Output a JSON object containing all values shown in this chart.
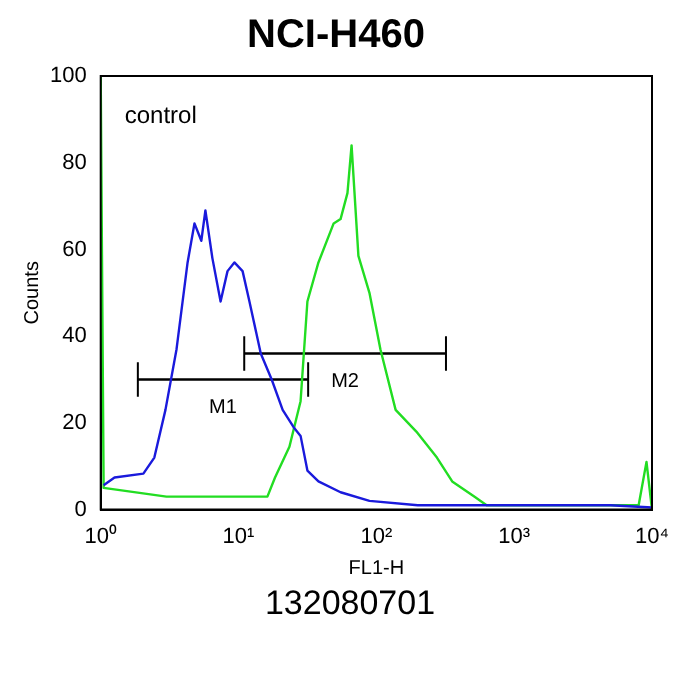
{
  "chart_data": {
    "type": "line",
    "title": "NCI-H460",
    "xlabel": "FL1-H",
    "ylabel": "Counts",
    "log": "x",
    "xlim": [
      1,
      10000
    ],
    "ylim": [
      0,
      100
    ],
    "xticks": [
      {
        "value": 1,
        "label": "10⁰"
      },
      {
        "value": 10,
        "label": "10¹"
      },
      {
        "value": 100,
        "label": "10²"
      },
      {
        "value": 1000,
        "label": "10³"
      },
      {
        "value": 10000,
        "label": "10⁴"
      }
    ],
    "yticks": [
      0,
      20,
      40,
      60,
      80,
      100
    ],
    "grid": false,
    "legend": false,
    "marker": "none",
    "line_style": "solid",
    "series": [
      {
        "color": "#1a1adc",
        "x": [
          1.05,
          1.26,
          2.04,
          2.45,
          2.95,
          3.55,
          4.27,
          4.79,
          5.37,
          5.75,
          6.46,
          7.41,
          8.32,
          9.33,
          10.7,
          12.0,
          14.5,
          17.4,
          20.9,
          25.1,
          28.2,
          31.6,
          38.0,
          55.0,
          89.1,
          200,
          1000,
          5000,
          10000
        ],
        "values": [
          5.6,
          7.4,
          8.3,
          12,
          23,
          37,
          57,
          66,
          62,
          69,
          58,
          48,
          55,
          57,
          55,
          48,
          36,
          30,
          23,
          19,
          17,
          9,
          6.5,
          4,
          2,
          1,
          1,
          1,
          0.5
        ]
      },
      {
        "color": "#22dd22",
        "x": [
          1,
          1.05,
          3,
          10,
          16.2,
          18.4,
          23.4,
          28.2,
          31.6,
          38.0,
          49.0,
          55.0,
          61.7,
          66.1,
          74.1,
          89.1,
          107,
          138,
          195,
          275,
          355,
          513,
          631,
          2000,
          8000,
          9120,
          10000
        ],
        "values": [
          100,
          5,
          3,
          3,
          3,
          7.4,
          14.5,
          25,
          48,
          57,
          66,
          67,
          73,
          84,
          58.5,
          50,
          37,
          23,
          18,
          12,
          6.5,
          3,
          1,
          1,
          1,
          11,
          0
        ]
      },
      {
        "name": "M1",
        "color": "#000000",
        "x": [
          1.86,
          32
        ],
        "values": [
          30,
          30
        ],
        "errors": [
          4,
          4
        ]
      },
      {
        "name": "M2",
        "color": "#000000",
        "x": [
          11,
          320
        ],
        "values": [
          36,
          36
        ],
        "errors": [
          4,
          4
        ]
      }
    ],
    "annotations": [
      "control",
      "132080701"
    ]
  }
}
